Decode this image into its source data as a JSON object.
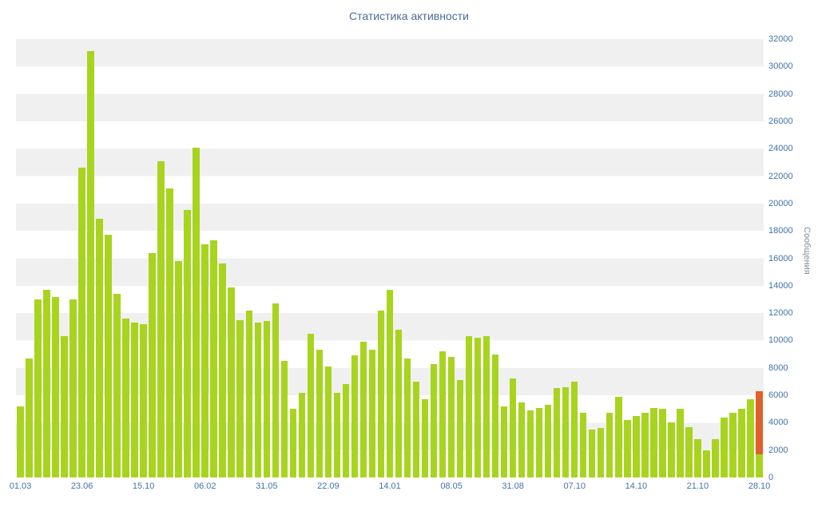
{
  "chart_data": {
    "type": "bar",
    "title": "Статистика активности",
    "ylabel": "Сообщения",
    "xlabel": "",
    "ylim": [
      0,
      32000
    ],
    "yticks": [
      0,
      2000,
      4000,
      6000,
      8000,
      10000,
      12000,
      14000,
      16000,
      18000,
      20000,
      22000,
      24000,
      26000,
      28000,
      30000,
      32000
    ],
    "grid": "horizontal-stripes",
    "legend": "none",
    "x_labels": [
      {
        "text": "01.03",
        "index": 0
      },
      {
        "text": "23.06",
        "index": 7
      },
      {
        "text": "15.10",
        "index": 14
      },
      {
        "text": "06.02",
        "index": 21
      },
      {
        "text": "31.05",
        "index": 28
      },
      {
        "text": "22.09",
        "index": 35
      },
      {
        "text": "14.01",
        "index": 42
      },
      {
        "text": "08.05",
        "index": 49
      },
      {
        "text": "31.08",
        "index": 56
      },
      {
        "text": "07.10",
        "index": 63
      },
      {
        "text": "14.10",
        "index": 70
      },
      {
        "text": "21.10",
        "index": 77
      },
      {
        "text": "28.10",
        "index": 84
      }
    ],
    "values": [
      5200,
      8700,
      13000,
      13700,
      13200,
      10300,
      13000,
      22600,
      31100,
      18900,
      17700,
      13400,
      11600,
      11300,
      11200,
      16400,
      23100,
      21100,
      15800,
      19500,
      24100,
      17000,
      17300,
      15600,
      13900,
      11500,
      12200,
      11300,
      11400,
      12700,
      8500,
      5000,
      6200,
      10500,
      9300,
      8100,
      6200,
      6800,
      8900,
      9900,
      9300,
      12200,
      13700,
      10800,
      8700,
      7000,
      5700,
      8300,
      9200,
      8800,
      7100,
      10300,
      10200,
      10300,
      9000,
      5200,
      7200,
      5500,
      4900,
      5100,
      5300,
      6500,
      6600,
      7000,
      4700,
      3500,
      3600,
      4700,
      5900,
      4200,
      4500,
      4700,
      5100,
      5000,
      4000,
      5000,
      3700,
      2800,
      2000,
      2800,
      4400,
      4700,
      5000,
      5700,
      6300
    ],
    "highlight_index": 84,
    "highlight_base_value": 1700,
    "colors": {
      "bar": "#a8d41f",
      "highlight": "#e05f2a",
      "title": "#4a6d99",
      "axis_label": "#4272a8",
      "y_title": "#7f8ea0",
      "stripe": "#f0f0f0",
      "background": "#ffffff"
    }
  }
}
